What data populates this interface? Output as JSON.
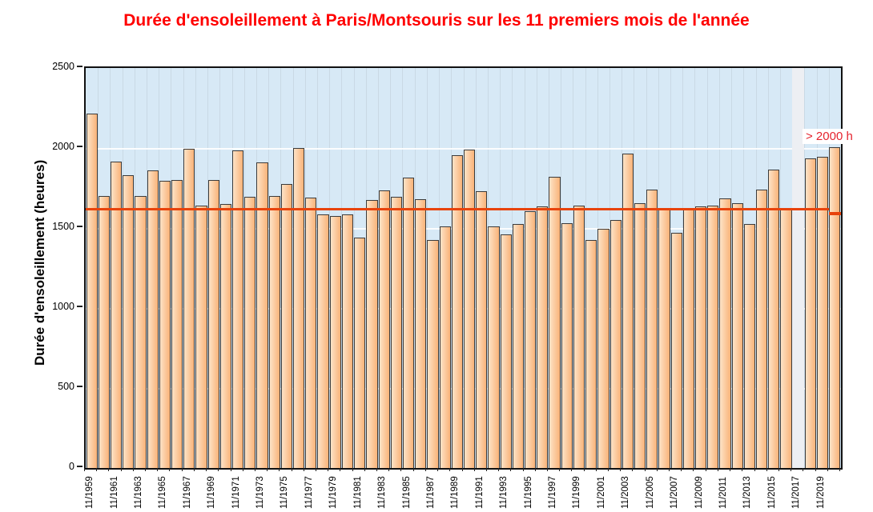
{
  "title": {
    "text": "Durée d'ensoleillement à Paris/Montsouris sur les 11 premiers mois de l'année",
    "color": "#ff0000"
  },
  "chart_data": {
    "type": "bar",
    "title": "Durée d'ensoleillement à Paris/Montsouris sur les 11 premiers mois de l'année",
    "xlabel": "",
    "ylabel": "Durée d'ensoleillement (heures)",
    "ylim": [
      0,
      2500
    ],
    "y_ticks": [
      0,
      500,
      1000,
      1500,
      2000,
      2500
    ],
    "grid": true,
    "legend": "none",
    "start_year": 1959,
    "x_tick_labels": [
      "11/1959",
      "11/1961",
      "11/1963",
      "11/1965",
      "11/1967",
      "11/1969",
      "11/1971",
      "11/1973",
      "11/1975",
      "11/1977",
      "11/1979",
      "11/1981",
      "11/1983",
      "11/1985",
      "11/1987",
      "11/1989",
      "11/1991",
      "11/1993",
      "11/1995",
      "11/1997",
      "11/1999",
      "11/2001",
      "11/2003",
      "11/2005",
      "11/2007",
      "11/2009",
      "11/2011",
      "11/2013",
      "11/2015",
      "11/2017",
      "11/2019"
    ],
    "values": [
      2215,
      1700,
      1915,
      1830,
      1700,
      1860,
      1795,
      1800,
      1995,
      1640,
      1800,
      1650,
      1985,
      1695,
      1910,
      1700,
      1775,
      2000,
      1690,
      1585,
      1575,
      1585,
      1440,
      1675,
      1735,
      1695,
      1815,
      1680,
      1425,
      1510,
      1955,
      1990,
      1730,
      1510,
      1460,
      1525,
      1605,
      1635,
      1820,
      1530,
      1640,
      1425,
      1495,
      1550,
      1965,
      1655,
      1740,
      1615,
      1470,
      1625,
      1635,
      1640,
      1685,
      1655,
      1525,
      1740,
      1865,
      1615,
      null,
      1935,
      1945,
      2005
    ],
    "missing_year": 2017,
    "average_line": {
      "value": 1617,
      "value_over_last_bar": 1590,
      "color": "#e8430c"
    },
    "annotation": {
      "text": "> 2000 h",
      "color": "#e5232e"
    },
    "colors": {
      "plot_background": "#d7e9f6",
      "bar_fill_light": "#fde3c7",
      "bar_fill_dark": "#f9b379",
      "bar_border": "#3b3b3b",
      "vertical_gridline": "#c9d9e5",
      "horizontal_gridline": "rgba(255,255,255,0.9)",
      "missing_band": "#edeff3",
      "axis": "#111111",
      "title_red": "#ff0000",
      "annotation_red": "#e5232e"
    }
  }
}
